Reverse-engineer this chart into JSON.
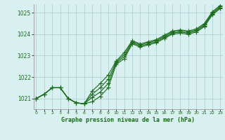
{
  "title": "Graphe pression niveau de la mer (hPa)",
  "x_hours": [
    0,
    1,
    2,
    3,
    4,
    5,
    6,
    7,
    8,
    9,
    10,
    11,
    12,
    13,
    14,
    15,
    16,
    17,
    18,
    19,
    20,
    21,
    22,
    23
  ],
  "series1": [
    1021.0,
    1021.2,
    1021.5,
    1021.5,
    1021.0,
    1020.8,
    1020.75,
    1020.85,
    1021.1,
    1021.5,
    1022.6,
    1022.85,
    1023.55,
    1023.4,
    1023.5,
    1023.6,
    1023.8,
    1024.0,
    1024.05,
    1024.0,
    1024.1,
    1024.35,
    1024.9,
    1025.2
  ],
  "series2": [
    1021.0,
    1021.2,
    1021.5,
    1021.5,
    1021.0,
    1020.8,
    1020.75,
    1021.05,
    1021.3,
    1021.7,
    1022.65,
    1022.95,
    1023.6,
    1023.45,
    1023.55,
    1023.65,
    1023.85,
    1024.05,
    1024.1,
    1024.05,
    1024.15,
    1024.4,
    1024.95,
    1025.25
  ],
  "series3": [
    1021.0,
    1021.2,
    1021.5,
    1021.5,
    1021.0,
    1020.8,
    1020.75,
    1021.2,
    1021.5,
    1021.9,
    1022.7,
    1023.05,
    1023.65,
    1023.5,
    1023.6,
    1023.7,
    1023.9,
    1024.1,
    1024.15,
    1024.1,
    1024.2,
    1024.45,
    1025.0,
    1025.3
  ],
  "series4": [
    1021.0,
    1021.2,
    1021.5,
    1021.5,
    1021.0,
    1020.8,
    1020.75,
    1021.35,
    1021.7,
    1022.1,
    1022.75,
    1023.15,
    1023.7,
    1023.55,
    1023.65,
    1023.75,
    1023.95,
    1024.15,
    1024.2,
    1024.15,
    1024.25,
    1024.5,
    1025.05,
    1025.35
  ],
  "ylim": [
    1020.5,
    1025.4
  ],
  "yticks": [
    1021,
    1022,
    1023,
    1024,
    1025
  ],
  "xlim": [
    -0.3,
    23.3
  ],
  "bg_color": "#d8f0f0",
  "line_color": "#1a6b1a",
  "grid_color": "#a8cece",
  "title_color": "#1a6b1a",
  "marker": "+",
  "markersize": 4,
  "linewidth": 0.8
}
